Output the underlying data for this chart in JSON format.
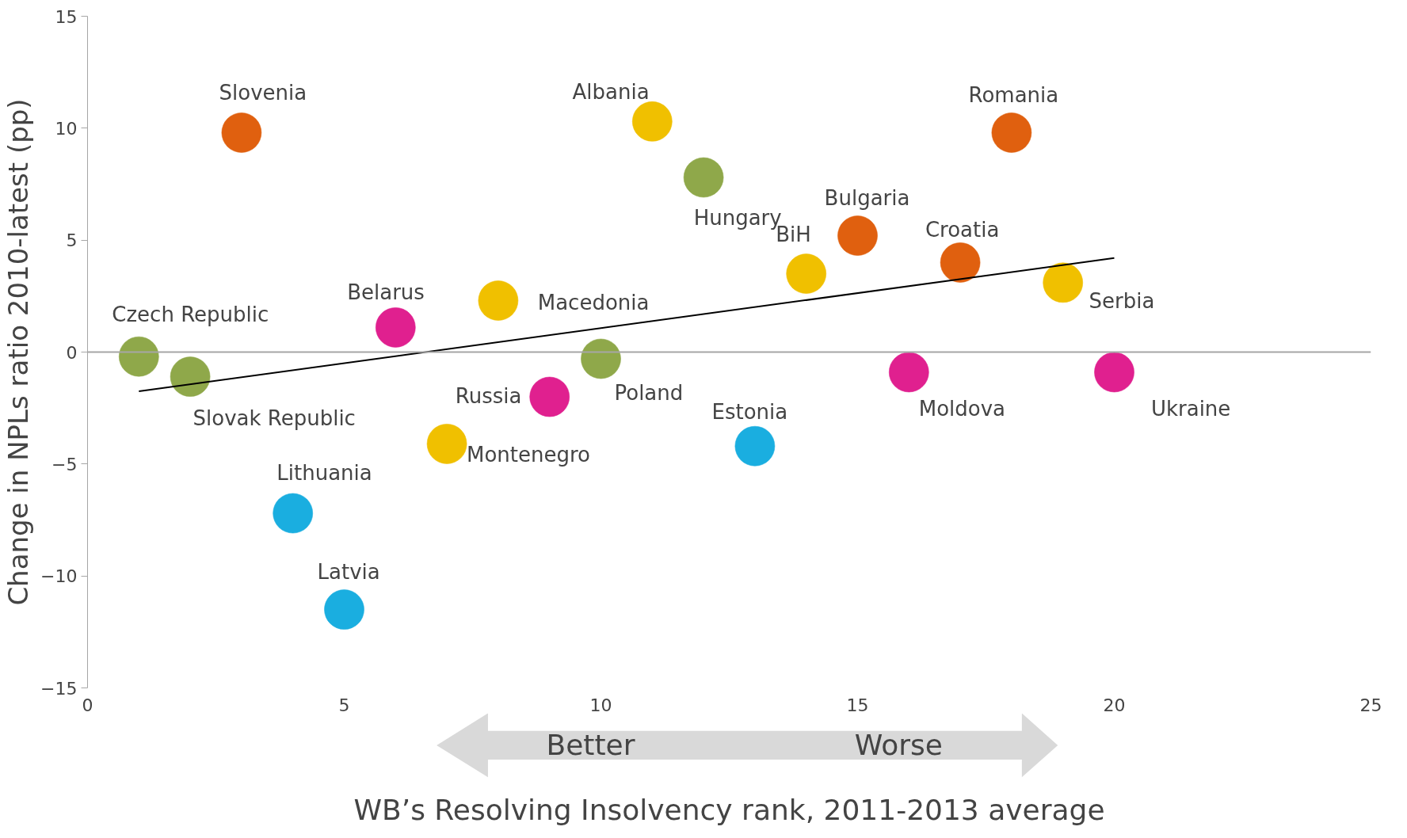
{
  "chart_data": {
    "type": "scatter",
    "xlabel": "WB’s Resolving Insolvency rank, 2011-2013 average",
    "ylabel": "Change in NPLs ratio 2010-latest (pp)",
    "xlim": [
      0,
      25
    ],
    "ylim": [
      -15,
      15
    ],
    "xticks": [
      0,
      5,
      10,
      15,
      20,
      25
    ],
    "yticks": [
      -15,
      -10,
      -5,
      0,
      5,
      10,
      15
    ],
    "grid": false,
    "ref_lines": [
      {
        "axis": "y",
        "value": 0,
        "color": "#a6a6a6"
      }
    ],
    "series": [
      {
        "marker": "circle",
        "x": [
          1,
          2,
          3,
          4,
          5,
          6,
          7,
          8,
          9,
          10,
          11,
          12,
          13,
          14,
          15,
          16,
          17,
          18,
          19,
          20
        ],
        "values": [
          -0.2,
          -1.1,
          9.8,
          -7.2,
          -11.5,
          1.1,
          -4.1,
          2.3,
          -2.0,
          -0.3,
          10.3,
          7.8,
          -4.2,
          3.5,
          5.2,
          -0.9,
          4.0,
          9.8,
          3.1,
          -0.9
        ],
        "colors": [
          "#8fa84a",
          "#8fa84a",
          "#e0600f",
          "#1aaee0",
          "#1aaee0",
          "#e0208f",
          "#f0c000",
          "#f0c000",
          "#e0208f",
          "#8fa84a",
          "#f0c000",
          "#8fa84a",
          "#1aaee0",
          "#f0c000",
          "#e0600f",
          "#e0208f",
          "#e0600f",
          "#e0600f",
          "#f0c000",
          "#e0208f"
        ]
      },
      {
        "type": "line",
        "color": "#000000",
        "x": [
          1,
          20
        ],
        "values": [
          -1.75,
          4.2
        ]
      }
    ],
    "annotations": [
      {
        "text": "Czech Republic",
        "x": 1,
        "y": -0.2
      },
      {
        "text": "Slovak Republic",
        "x": 2,
        "y": -1.1
      },
      {
        "text": "Slovenia",
        "x": 3,
        "y": 9.8
      },
      {
        "text": "Lithuania",
        "x": 4,
        "y": -7.2
      },
      {
        "text": "Latvia",
        "x": 5,
        "y": -11.5
      },
      {
        "text": "Belarus",
        "x": 6,
        "y": 1.1
      },
      {
        "text": "Montenegro",
        "x": 7,
        "y": -4.1
      },
      {
        "text": "Macedonia",
        "x": 8,
        "y": 2.3
      },
      {
        "text": "Russia",
        "x": 9,
        "y": -2.0
      },
      {
        "text": "Poland",
        "x": 10,
        "y": -0.3
      },
      {
        "text": "Albania",
        "x": 11,
        "y": 10.3
      },
      {
        "text": "Hungary",
        "x": 12,
        "y": 7.8
      },
      {
        "text": "Estonia",
        "x": 13,
        "y": -4.2
      },
      {
        "text": "BiH",
        "x": 14,
        "y": 3.5
      },
      {
        "text": "Bulgaria",
        "x": 15,
        "y": 5.2
      },
      {
        "text": "Moldova",
        "x": 16,
        "y": -0.9
      },
      {
        "text": "Croatia",
        "x": 17,
        "y": 4.0
      },
      {
        "text": "Romania",
        "x": 18,
        "y": 9.8
      },
      {
        "text": "Serbia",
        "x": 19,
        "y": 3.1
      },
      {
        "text": "Ukraine",
        "x": 20,
        "y": -0.9
      },
      "Better",
      "Worse"
    ]
  }
}
